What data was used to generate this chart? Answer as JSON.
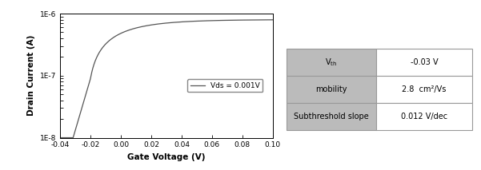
{
  "xlim": [
    -0.04,
    0.1
  ],
  "ylim_log": [
    1e-08,
    1e-06
  ],
  "xlabel": "Gate Voltage (V)",
  "ylabel": "Drain Current (A)",
  "legend_label": "Vds = 0.001V",
  "line_color": "#555555",
  "table_values": [
    "-0.03 V",
    "2.8  cm²/Vs",
    "0.012 V/dec"
  ],
  "header_bg": "#bbbbbb",
  "value_bg": "#ffffff",
  "bg_color": "#ffffff",
  "xticks": [
    -0.04,
    -0.02,
    0.0,
    0.02,
    0.04,
    0.06,
    0.08,
    0.1
  ],
  "ytick_labels": [
    "1E-8",
    "1E-7",
    "1E-6"
  ]
}
